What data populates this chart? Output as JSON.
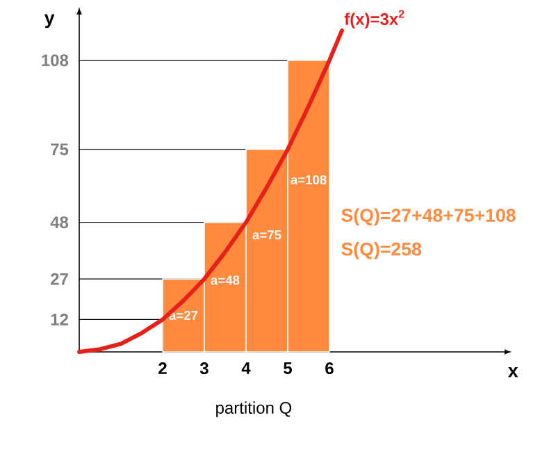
{
  "chart_data": {
    "type": "histogram",
    "xlabel": "x",
    "ylabel": "y",
    "bins": [
      2,
      3,
      4,
      5,
      6
    ],
    "values": [
      27,
      48,
      75,
      108
    ],
    "color": "#ff8a3d",
    "value_labels": [
      "a=27",
      "a=48",
      "a=75",
      "a=108"
    ],
    "series": [
      {
        "type": "line",
        "name": "f(x)=3x$^{2}$",
        "color": "#e8201a",
        "x": [
          0,
          0.5,
          1,
          1.5,
          2,
          2.5,
          3,
          3.5,
          4,
          4.5,
          5,
          5.5,
          6,
          6.3
        ],
        "values": [
          0,
          1,
          3,
          7,
          12,
          19,
          27,
          37,
          48,
          61,
          75,
          91,
          108,
          119
        ]
      }
    ],
    "xlim": [
      0,
      10.2
    ],
    "ylim": [
      0,
      125
    ],
    "xticks": [
      2,
      3,
      4,
      5,
      6
    ],
    "yticks": [
      12,
      27,
      48,
      75,
      108
    ],
    "ref_lines": [
      {
        "axis": "y",
        "value": 12
      },
      {
        "axis": "y",
        "value": 27
      },
      {
        "axis": "y",
        "value": 48
      },
      {
        "axis": "y",
        "value": 75
      },
      {
        "axis": "y",
        "value": 108
      },
      {
        "axis": "x",
        "value": 2
      }
    ],
    "annotations": [
      "S(Q)=27+48+75+108",
      "S(Q)=258",
      "partition Q"
    ]
  }
}
